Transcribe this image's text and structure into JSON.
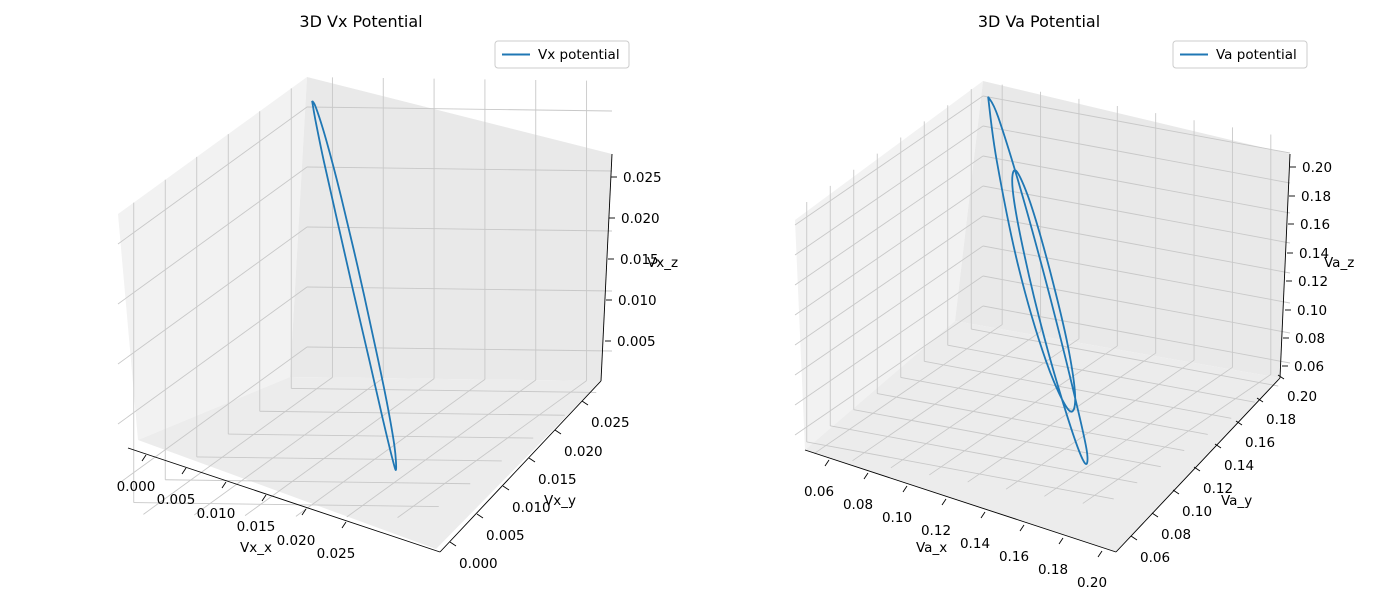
{
  "chart_data": [
    {
      "type": "line3d",
      "title": "3D Vx Potential",
      "xlabel": "Vx_x",
      "ylabel": "Vx_y",
      "zlabel": "Vx_z",
      "x_ticks": [
        "0.000",
        "0.005",
        "0.010",
        "0.015",
        "0.020",
        "0.025"
      ],
      "y_ticks": [
        "0.000",
        "0.005",
        "0.010",
        "0.015",
        "0.020",
        "0.025"
      ],
      "z_ticks": [
        "0.005",
        "0.010",
        "0.015",
        "0.020",
        "0.025"
      ],
      "legend": {
        "label": "Vx potential",
        "placement": "top-right"
      },
      "series": [
        {
          "name": "Vx potential",
          "color": "#1f77b4",
          "x": [
            0.0,
            0.001,
            0.0036,
            0.0074,
            0.0116,
            0.0157,
            0.019,
            0.021,
            0.0214,
            0.0204,
            0.018,
            0.0146,
            0.0105,
            0.0065,
            0.003,
            0.0008,
            0.0
          ],
          "y": [
            0.0,
            0.001,
            0.0036,
            0.0074,
            0.0116,
            0.0157,
            0.019,
            0.021,
            0.0214,
            0.0204,
            0.018,
            0.0146,
            0.0105,
            0.0065,
            0.003,
            0.0008,
            0.0
          ],
          "z": [
            0.027,
            0.0268,
            0.025,
            0.0215,
            0.017,
            0.0122,
            0.008,
            0.0048,
            0.0028,
            0.0035,
            0.006,
            0.0098,
            0.0143,
            0.0188,
            0.0228,
            0.0257,
            0.027
          ]
        }
      ]
    },
    {
      "type": "line3d",
      "title": "3D Va Potential",
      "xlabel": "Va_x",
      "ylabel": "Va_y",
      "zlabel": "Va_z",
      "x_ticks": [
        "0.06",
        "0.08",
        "0.10",
        "0.12",
        "0.14",
        "0.16",
        "0.18",
        "0.20"
      ],
      "y_ticks": [
        "0.06",
        "0.08",
        "0.10",
        "0.12",
        "0.14",
        "0.16",
        "0.18",
        "0.20"
      ],
      "z_ticks": [
        "0.06",
        "0.08",
        "0.10",
        "0.12",
        "0.14",
        "0.16",
        "0.18",
        "0.20"
      ],
      "legend": {
        "label": "Va potential",
        "placement": "top-right"
      },
      "series": [
        {
          "name": "Va potential",
          "color": "#1f77b4",
          "x": [
            0.05,
            0.064,
            0.098,
            0.136,
            0.168,
            0.186,
            0.182,
            0.16,
            0.128,
            0.1,
            0.084,
            0.088,
            0.108,
            0.135,
            0.16,
            0.17,
            0.16,
            0.13,
            0.092,
            0.062,
            0.05
          ],
          "y": [
            0.05,
            0.064,
            0.098,
            0.136,
            0.168,
            0.186,
            0.182,
            0.16,
            0.128,
            0.1,
            0.084,
            0.088,
            0.108,
            0.135,
            0.16,
            0.17,
            0.16,
            0.13,
            0.092,
            0.062,
            0.05
          ],
          "z": [
            0.198,
            0.195,
            0.168,
            0.13,
            0.093,
            0.068,
            0.058,
            0.07,
            0.098,
            0.132,
            0.162,
            0.178,
            0.172,
            0.148,
            0.117,
            0.09,
            0.076,
            0.085,
            0.118,
            0.165,
            0.198
          ]
        }
      ]
    }
  ]
}
